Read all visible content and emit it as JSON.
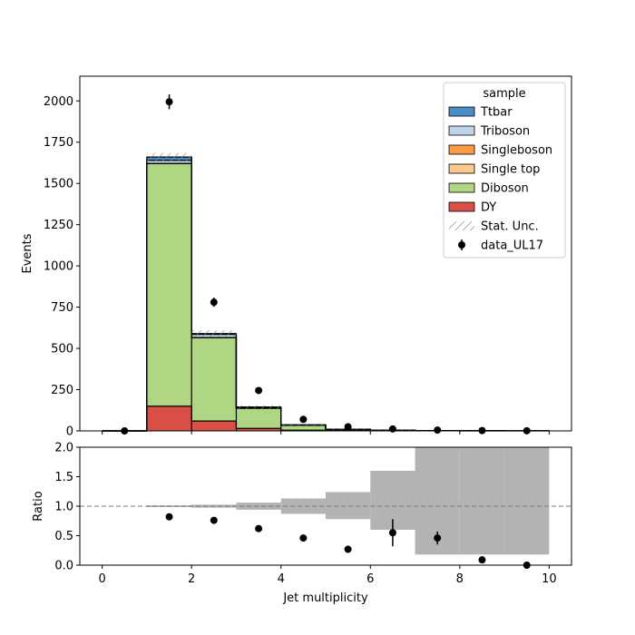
{
  "chart_data": [
    {
      "type": "stacked_histogram",
      "panel": "main",
      "xlabel": "",
      "ylabel": "Events",
      "xlim": [
        -0.5,
        10.5
      ],
      "ylim": [
        0,
        2150
      ],
      "yticks": [
        0,
        250,
        500,
        750,
        1000,
        1250,
        1500,
        1750,
        2000
      ],
      "bin_edges": [
        0,
        1,
        2,
        3,
        4,
        5,
        6,
        7,
        8,
        9,
        10
      ],
      "stack_order_bottom_to_top": [
        "DY",
        "Diboson",
        "Single top",
        "Singleboson",
        "Triboson",
        "Ttbar"
      ],
      "series": [
        {
          "name": "DY",
          "color": "#d94f45",
          "values": [
            0,
            150,
            60,
            15,
            4,
            2,
            1,
            0.5,
            0.2,
            0.1
          ]
        },
        {
          "name": "Diboson",
          "color": "#aed683",
          "values": [
            0,
            1470,
            505,
            122,
            30,
            7,
            3,
            1.5,
            0.5,
            0.2
          ]
        },
        {
          "name": "Single top",
          "color": "#fec98c",
          "values": [
            0,
            0,
            0,
            0,
            0,
            0,
            0,
            0,
            0,
            0
          ]
        },
        {
          "name": "Singleboson",
          "color": "#fd9a44",
          "values": [
            0,
            0,
            0,
            0,
            0,
            0,
            0,
            0,
            0,
            0
          ]
        },
        {
          "name": "Triboson",
          "color": "#c0d3ea",
          "values": [
            0,
            20,
            20,
            6,
            2,
            1,
            0.5,
            0.3,
            0.1,
            0
          ]
        },
        {
          "name": "Ttbar",
          "color": "#4a8cc5",
          "values": [
            0,
            20,
            5,
            2,
            1,
            0.5,
            0.3,
            0.2,
            0.1,
            0
          ]
        }
      ],
      "stat_unc": {
        "name": "Stat. Unc.",
        "values": [
          0,
          25,
          20,
          10,
          5,
          3,
          2,
          1,
          1,
          0.5
        ]
      },
      "data": {
        "name": "data_UL17",
        "x": [
          0.5,
          1.5,
          2.5,
          3.5,
          4.5,
          5.5,
          6.5,
          7.5,
          8.5,
          9.5
        ],
        "y": [
          0,
          1995,
          780,
          245,
          70,
          25,
          12,
          5,
          2,
          1
        ],
        "yerr": [
          0,
          45,
          28,
          16,
          8,
          5,
          3.5,
          2.2,
          1.4,
          1
        ]
      },
      "legend": {
        "title": "sample",
        "placement": "upper right"
      }
    },
    {
      "type": "ratio",
      "panel": "ratio",
      "xlabel": "Jet multiplicity",
      "ylabel": "Ratio",
      "xlim": [
        -0.5,
        10.5
      ],
      "ylim": [
        0,
        2
      ],
      "xticks": [
        0,
        2,
        4,
        6,
        8,
        10
      ],
      "yticks": [
        0.0,
        0.5,
        1.0,
        1.5,
        2.0
      ],
      "reference_line": 1.0,
      "unc_band": {
        "bin_edges": [
          1,
          2,
          3,
          4,
          5,
          6,
          7,
          8,
          9,
          10
        ],
        "low": [
          0.985,
          0.975,
          0.94,
          0.87,
          0.78,
          0.6,
          0.18,
          0.18,
          0.18
        ],
        "high": [
          1.015,
          1.025,
          1.06,
          1.13,
          1.24,
          1.6,
          2.0,
          2.0,
          2.0
        ]
      },
      "points": {
        "x": [
          1.5,
          2.5,
          3.5,
          4.5,
          5.5,
          6.5,
          7.5,
          8.5,
          9.5
        ],
        "y": [
          0.82,
          0.76,
          0.62,
          0.46,
          0.27,
          0.55,
          0.46,
          0.09,
          0.0
        ],
        "yerr": [
          0.02,
          0.03,
          0.04,
          0.05,
          0.06,
          0.23,
          0.11,
          0.0,
          0.0
        ]
      }
    }
  ],
  "legend_items": [
    {
      "label": "Ttbar",
      "kind": "box",
      "color": "#4a8cc5"
    },
    {
      "label": "Triboson",
      "kind": "box",
      "color": "#c0d3ea"
    },
    {
      "label": "Singleboson",
      "kind": "box",
      "color": "#fd9a44"
    },
    {
      "label": "Single top",
      "kind": "box",
      "color": "#fec98c"
    },
    {
      "label": "Diboson",
      "kind": "box",
      "color": "#aed683"
    },
    {
      "label": "DY",
      "kind": "box",
      "color": "#d94f45"
    },
    {
      "label": "Stat. Unc.",
      "kind": "hatch",
      "color": "#888888"
    },
    {
      "label": "data_UL17",
      "kind": "marker",
      "color": "#000000"
    }
  ]
}
